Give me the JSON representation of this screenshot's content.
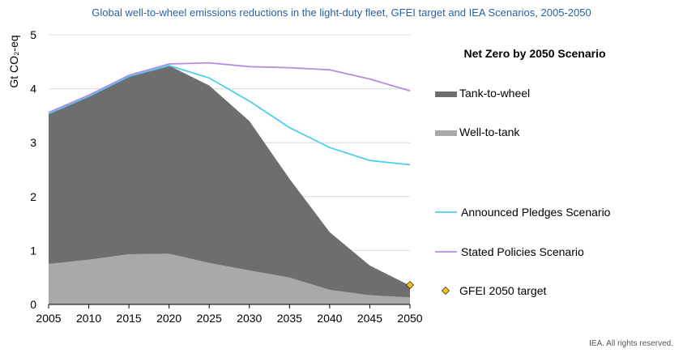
{
  "title": "Global well-to-wheel emissions reductions in the light-duty fleet, GFEI target and IEA Scenarios, 2005-2050",
  "footer": "IEA. All rights reserved.",
  "chart_data": {
    "type": "area",
    "title": "Global well-to-wheel emissions reductions in the light-duty fleet, GFEI target and IEA Scenarios, 2005-2050",
    "xlabel": "",
    "ylabel": "Gt CO₂-eq",
    "ylim": [
      0,
      5
    ],
    "yticks": [
      0,
      1,
      2,
      3,
      4,
      5
    ],
    "x": [
      2005,
      2010,
      2015,
      2020,
      2025,
      2030,
      2035,
      2040,
      2045,
      2050
    ],
    "grid": true,
    "legend_header": "Net Zero by 2050 Scenario",
    "stacked_areas": [
      {
        "name": "Well-to-tank",
        "color": "#a9a9a9",
        "values": [
          0.75,
          0.83,
          0.93,
          0.94,
          0.77,
          0.63,
          0.5,
          0.27,
          0.17,
          0.13
        ]
      },
      {
        "name": "Tank-to-wheel",
        "color": "#6d6e6d",
        "values": [
          2.79,
          3.03,
          3.3,
          3.49,
          3.29,
          2.77,
          1.83,
          1.07,
          0.55,
          0.22
        ]
      }
    ],
    "lines": [
      {
        "name": "Announced Pledges Scenario",
        "color": "#4dd0f0",
        "values": [
          3.54,
          3.86,
          4.23,
          4.43,
          4.2,
          3.77,
          3.28,
          2.91,
          2.67,
          2.59
        ]
      },
      {
        "name": "Stated Policies Scenario",
        "color": "#b58de0",
        "values": [
          3.56,
          3.88,
          4.25,
          4.46,
          4.48,
          4.41,
          4.39,
          4.35,
          4.18,
          3.96
        ]
      }
    ],
    "points": [
      {
        "name": "GFEI 2050 target",
        "color": "#f0c419",
        "x": 2050,
        "y": 0.36
      }
    ]
  }
}
